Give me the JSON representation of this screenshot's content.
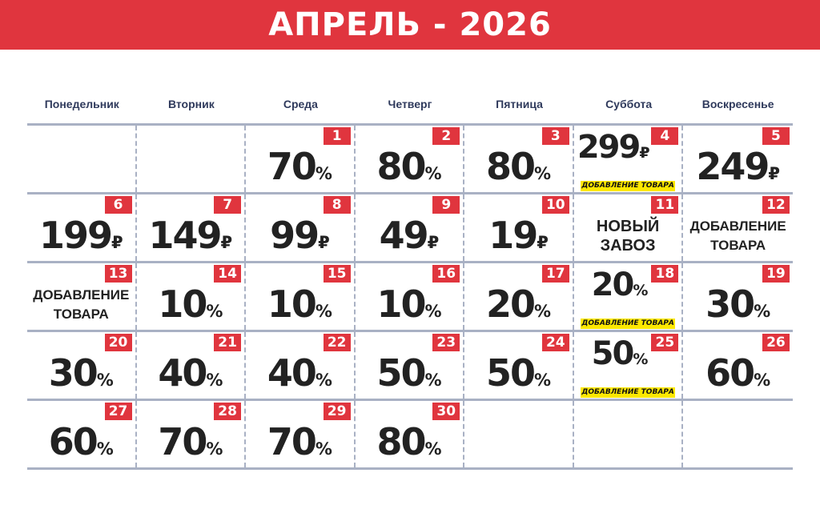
{
  "title": "АПРЕЛЬ - 2026",
  "colors": {
    "accent": "#e0353e",
    "highlight": "#fde800",
    "grid": "#a9b1c4"
  },
  "weekdays": [
    "Понедельник",
    "Вторник",
    "Среда",
    "Четверг",
    "Пятница",
    "Суббота",
    "Воскресенье"
  ],
  "cells": [
    null,
    null,
    {
      "day": "1",
      "value": "70",
      "unit": "%"
    },
    {
      "day": "2",
      "value": "80",
      "unit": "%"
    },
    {
      "day": "3",
      "value": "80",
      "unit": "%"
    },
    {
      "day": "4",
      "value": "299",
      "unit": "₽",
      "note": "ДОБАВЛЕНИЕ ТОВАРА"
    },
    {
      "day": "5",
      "value": "249",
      "unit": "₽"
    },
    {
      "day": "6",
      "value": "199",
      "unit": "₽"
    },
    {
      "day": "7",
      "value": "149",
      "unit": "₽"
    },
    {
      "day": "8",
      "value": "99",
      "unit": "₽"
    },
    {
      "day": "9",
      "value": "49",
      "unit": "₽"
    },
    {
      "day": "10",
      "value": "19",
      "unit": "₽"
    },
    {
      "day": "11",
      "text": [
        "НОВЫЙ",
        "ЗАВОЗ"
      ]
    },
    {
      "day": "12",
      "text": [
        "ДОБАВЛЕНИЕ",
        "ТОВАРА"
      ]
    },
    {
      "day": "13",
      "text": [
        "ДОБАВЛЕНИЕ",
        "ТОВАРА"
      ]
    },
    {
      "day": "14",
      "value": "10",
      "unit": "%"
    },
    {
      "day": "15",
      "value": "10",
      "unit": "%"
    },
    {
      "day": "16",
      "value": "10",
      "unit": "%"
    },
    {
      "day": "17",
      "value": "20",
      "unit": "%"
    },
    {
      "day": "18",
      "value": "20",
      "unit": "%",
      "note": "ДОБАВЛЕНИЕ ТОВАРА"
    },
    {
      "day": "19",
      "value": "30",
      "unit": "%"
    },
    {
      "day": "20",
      "value": "30",
      "unit": "%"
    },
    {
      "day": "21",
      "value": "40",
      "unit": "%"
    },
    {
      "day": "22",
      "value": "40",
      "unit": "%"
    },
    {
      "day": "23",
      "value": "50",
      "unit": "%"
    },
    {
      "day": "24",
      "value": "50",
      "unit": "%"
    },
    {
      "day": "25",
      "value": "50",
      "unit": "%",
      "note": "ДОБАВЛЕНИЕ ТОВАРА"
    },
    {
      "day": "26",
      "value": "60",
      "unit": "%"
    },
    {
      "day": "27",
      "value": "60",
      "unit": "%"
    },
    {
      "day": "28",
      "value": "70",
      "unit": "%"
    },
    {
      "day": "29",
      "value": "70",
      "unit": "%"
    },
    {
      "day": "30",
      "value": "80",
      "unit": "%"
    },
    null,
    null,
    null
  ]
}
